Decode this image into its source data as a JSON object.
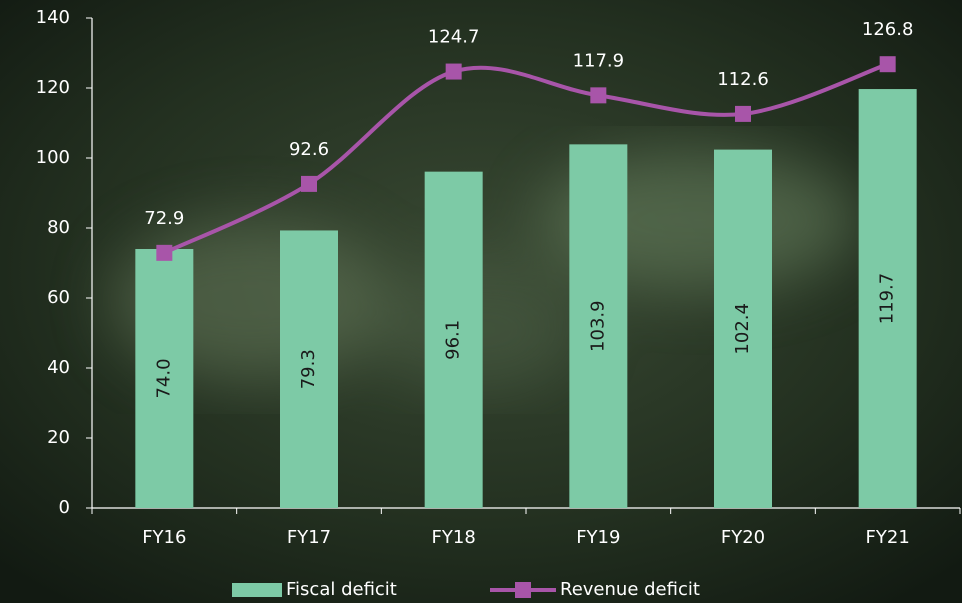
{
  "chart_data": {
    "type": "bar",
    "categories": [
      "FY16",
      "FY17",
      "FY18",
      "FY19",
      "FY20",
      "FY21"
    ],
    "series": [
      {
        "name": "Fiscal deficit",
        "type": "bar",
        "color": "#7dcaa6",
        "values": [
          74.0,
          79.3,
          96.1,
          103.9,
          102.4,
          119.7
        ],
        "value_labels": [
          "74.0",
          "79.3",
          "96.1",
          "103.9",
          "102.4",
          "119.7"
        ]
      },
      {
        "name": "Revenue deficit",
        "type": "line",
        "color": "#a855a9",
        "values": [
          72.9,
          92.6,
          124.7,
          117.9,
          112.6,
          126.8
        ]
      }
    ],
    "ylim": [
      0,
      140
    ],
    "yticks": [
      0,
      20,
      40,
      60,
      80,
      100,
      120,
      140
    ],
    "legend": "bottom"
  }
}
